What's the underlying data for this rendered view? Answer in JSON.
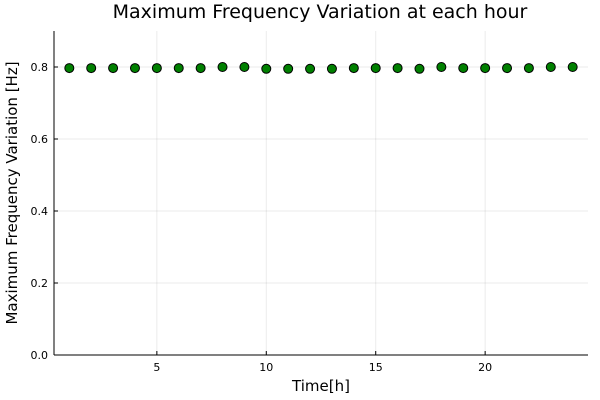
{
  "chart_data": {
    "type": "scatter",
    "title": "Maximum Frequency Variation at each hour",
    "xlabel": "Time[h]",
    "ylabel": "Maximum Frequency Variation [Hz]",
    "xlim": [
      0.3,
      24.7
    ],
    "ylim": [
      0,
      0.9
    ],
    "xticks": [
      5,
      10,
      15,
      20
    ],
    "yticks": [
      0.0,
      0.2,
      0.4,
      0.6,
      0.8
    ],
    "xtick_labels": [
      "5",
      "10",
      "15",
      "20"
    ],
    "ytick_labels": [
      "0.0",
      "0.2",
      "0.4",
      "0.6",
      "0.8"
    ],
    "grid": true,
    "legend": "none",
    "marker_color": "#008000",
    "series": [
      {
        "x": [
          1,
          2,
          3,
          4,
          5,
          6,
          7,
          8,
          9,
          10,
          11,
          12,
          13,
          14,
          15,
          16,
          17,
          18,
          19,
          20,
          21,
          22,
          23,
          24
        ],
        "values": [
          0.797,
          0.797,
          0.797,
          0.797,
          0.797,
          0.797,
          0.797,
          0.8,
          0.8,
          0.795,
          0.795,
          0.795,
          0.795,
          0.797,
          0.797,
          0.797,
          0.795,
          0.8,
          0.797,
          0.797,
          0.797,
          0.797,
          0.8,
          0.8
        ]
      }
    ]
  }
}
